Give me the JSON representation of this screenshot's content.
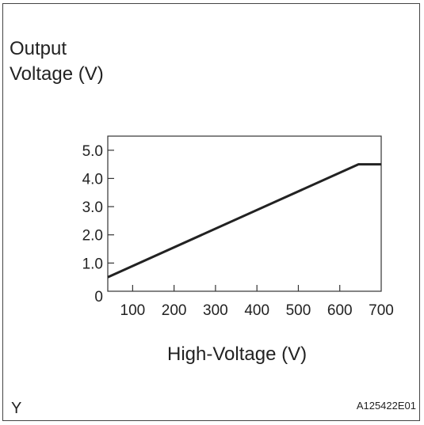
{
  "chart_data": {
    "type": "line",
    "ylabel_line1": "Output",
    "ylabel_line2": "Voltage (V)",
    "xlabel": "High-Voltage (V)",
    "x_ticks": [
      "100",
      "200",
      "300",
      "400",
      "500",
      "600",
      "700"
    ],
    "y_ticks": [
      "0",
      "1.0",
      "2.0",
      "3.0",
      "4.0",
      "5.0"
    ],
    "xlim": [
      40,
      700
    ],
    "ylim": [
      0,
      5.5
    ],
    "series": [
      {
        "x": [
          40,
          645,
          700
        ],
        "y": [
          0.5,
          4.5,
          4.5
        ]
      }
    ],
    "grid": false,
    "line_color": "#222222"
  },
  "footer": {
    "left": "Y",
    "right": "A125422E01"
  }
}
